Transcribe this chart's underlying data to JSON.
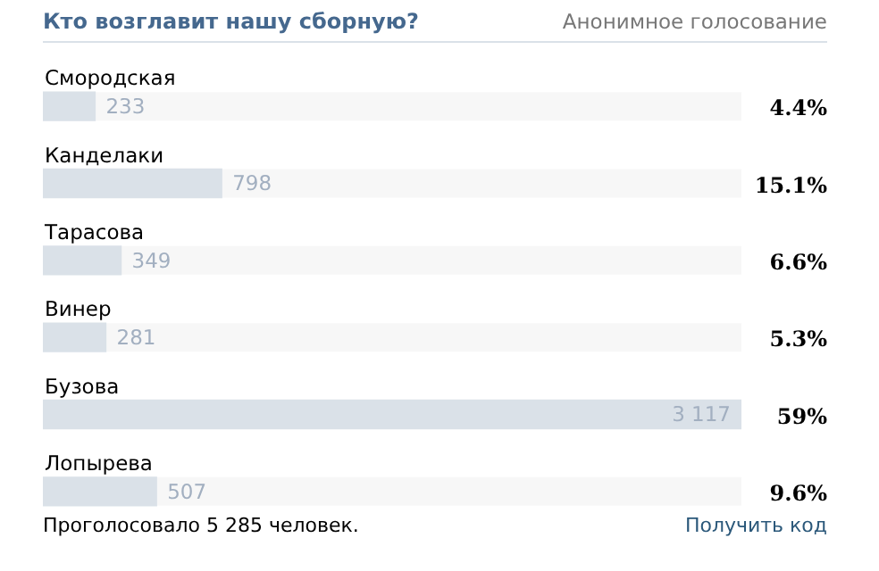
{
  "chart_data": {
    "type": "bar",
    "orientation": "horizontal",
    "title": "Кто возглавит нашу сборную?",
    "subtitle": "Анонимное голосование",
    "categories": [
      "Смородская",
      "Канделаки",
      "Тарасова",
      "Винер",
      "Бузова",
      "Лопырева"
    ],
    "values": [
      233,
      798,
      349,
      281,
      3117,
      507
    ],
    "color": "#dae1e8",
    "value_labels": [
      "233",
      "798",
      "349",
      "281",
      "3 117",
      "507"
    ],
    "annotations": [
      "4.4%",
      "15.1%",
      "6.6%",
      "5.3%",
      "59%",
      "9.6%",
      "Проголосовало 5 285 человек.",
      "Получить код"
    ]
  }
}
